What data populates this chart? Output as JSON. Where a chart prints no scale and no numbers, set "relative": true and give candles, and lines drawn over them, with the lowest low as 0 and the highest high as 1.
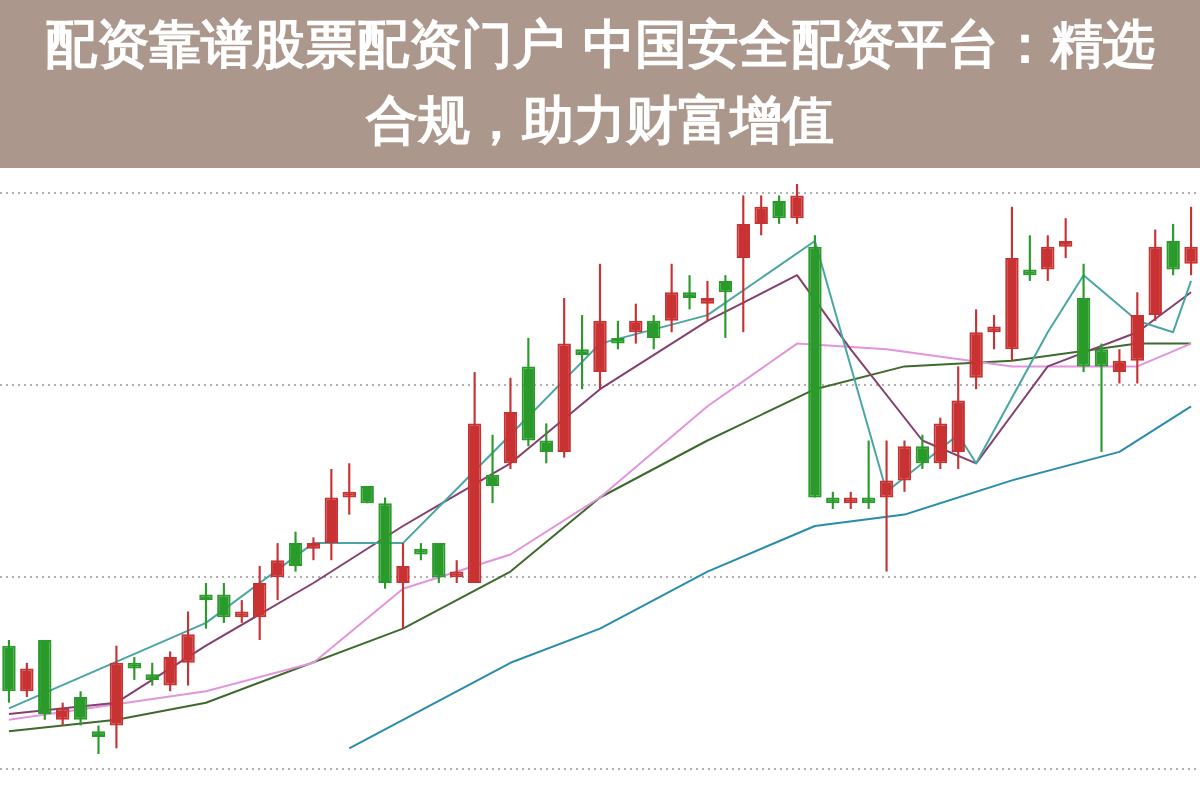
{
  "chart_data": {
    "type": "candlestick",
    "relative": true,
    "title": "配资靠谱股票配资门户 中国安全配资平台：精选合规，助力财富增值",
    "grid": true,
    "legend": false,
    "categories": [
      null,
      null,
      null,
      null,
      null,
      null,
      null,
      null,
      null,
      null,
      null,
      null,
      null,
      null,
      null,
      null,
      null,
      null,
      null,
      null,
      null,
      null,
      null,
      null,
      null,
      null,
      null,
      null,
      null,
      null,
      null,
      null,
      null,
      null,
      null,
      null,
      null,
      null,
      null,
      null,
      null,
      null,
      null,
      null,
      null,
      null,
      null,
      null,
      null,
      null,
      null,
      null,
      null,
      null,
      null,
      null,
      null,
      null,
      null,
      null,
      null,
      null,
      null,
      null,
      null,
      null,
      null
    ],
    "ohlc": [
      [
        0.19,
        0.2,
        0.09,
        0.11
      ],
      [
        0.11,
        0.16,
        0.1,
        0.15
      ],
      [
        0.2,
        0.2,
        0.06,
        0.07
      ],
      [
        0.06,
        0.09,
        0.05,
        0.08
      ],
      [
        0.1,
        0.11,
        0.05,
        0.06
      ],
      [
        0.04,
        0.05,
        0,
        0.03
      ],
      [
        0.05,
        0.19,
        0.01,
        0.16
      ],
      [
        0.16,
        0.17,
        0.13,
        0.15
      ],
      [
        0.14,
        0.16,
        0.12,
        0.13
      ],
      [
        0.12,
        0.18,
        0.11,
        0.17
      ],
      [
        0.16,
        0.25,
        0.12,
        0.21
      ],
      [
        0.28,
        0.3,
        0.22,
        0.27
      ],
      [
        0.28,
        0.3,
        0.23,
        0.24
      ],
      [
        0.24,
        0.27,
        0.23,
        0.25
      ],
      [
        0.24,
        0.33,
        0.2,
        0.3
      ],
      [
        0.31,
        0.37,
        0.27,
        0.34
      ],
      [
        0.37,
        0.39,
        0.32,
        0.33
      ],
      [
        0.36,
        0.38,
        0.34,
        0.37
      ],
      [
        0.37,
        0.5,
        0.34,
        0.45
      ],
      [
        0.45,
        0.51,
        0.42,
        0.46
      ],
      [
        0.47,
        0.47,
        0.44,
        0.44
      ],
      [
        0.44,
        0.45,
        0.29,
        0.3
      ],
      [
        0.3,
        0.37,
        0.22,
        0.33
      ],
      [
        0.36,
        0.37,
        0.34,
        0.35
      ],
      [
        0.37,
        0.37,
        0.3,
        0.31
      ],
      [
        0.31,
        0.34,
        0.3,
        0.32
      ],
      [
        0.3,
        0.67,
        0.3,
        0.58
      ],
      [
        0.49,
        0.56,
        0.44,
        0.47
      ],
      [
        0.51,
        0.66,
        0.5,
        0.6
      ],
      [
        0.68,
        0.73,
        0.54,
        0.55
      ],
      [
        0.55,
        0.58,
        0.51,
        0.53
      ],
      [
        0.53,
        0.8,
        0.52,
        0.72
      ],
      [
        0.71,
        0.77,
        0.64,
        0.7
      ],
      [
        0.67,
        0.86,
        0.64,
        0.76
      ],
      [
        0.73,
        0.76,
        0.71,
        0.72
      ],
      [
        0.74,
        0.79,
        0.72,
        0.76
      ],
      [
        0.76,
        0.77,
        0.71,
        0.73
      ],
      [
        0.76,
        0.86,
        0.74,
        0.81
      ],
      [
        0.81,
        0.84,
        0.78,
        0.8
      ],
      [
        0.79,
        0.83,
        0.76,
        0.8
      ],
      [
        0.83,
        0.84,
        0.73,
        0.81
      ],
      [
        0.87,
        0.98,
        0.74,
        0.93
      ],
      [
        0.93,
        0.98,
        0.91,
        0.96
      ],
      [
        0.97,
        0.98,
        0.93,
        0.94
      ],
      [
        0.94,
        1,
        0.93,
        0.98
      ],
      [
        0.89,
        0.91,
        0.45,
        0.45
      ],
      [
        0.45,
        0.46,
        0.43,
        0.44
      ],
      [
        0.44,
        0.46,
        0.43,
        0.45
      ],
      [
        0.45,
        0.55,
        0.43,
        0.44
      ],
      [
        0.45,
        0.55,
        0.32,
        0.48
      ],
      [
        0.48,
        0.55,
        0.46,
        0.54
      ],
      [
        0.54,
        0.56,
        0.5,
        0.51
      ],
      [
        0.51,
        0.59,
        0.5,
        0.58
      ],
      [
        0.53,
        0.68,
        0.5,
        0.62
      ],
      [
        0.66,
        0.78,
        0.64,
        0.74
      ],
      [
        0.74,
        0.77,
        0.71,
        0.75
      ],
      [
        0.71,
        0.96,
        0.69,
        0.87
      ],
      [
        0.85,
        0.91,
        0.83,
        0.84
      ],
      [
        0.85,
        0.91,
        0.83,
        0.89
      ],
      [
        0.89,
        0.94,
        0.87,
        0.9
      ],
      [
        0.8,
        0.86,
        0.67,
        0.68
      ],
      [
        0.71,
        0.72,
        0.53,
        0.68
      ],
      [
        0.67,
        0.71,
        0.65,
        0.69
      ],
      [
        0.69,
        0.81,
        0.65,
        0.77
      ],
      [
        0.77,
        0.92,
        0.76,
        0.89
      ],
      [
        0.9,
        0.93,
        0.84,
        0.85
      ],
      [
        0.86,
        0.96,
        0.84,
        0.89
      ]
    ],
    "series": [
      {
        "type": "line",
        "color": "#4aa6a6",
        "values": [
          0.08,
          null,
          null,
          null,
          null,
          null,
          null,
          null,
          null,
          null,
          null,
          0.23,
          null,
          null,
          null,
          null,
          null,
          0.37,
          null,
          null,
          null,
          null,
          0.37,
          null,
          null,
          null,
          null,
          null,
          0.56,
          null,
          null,
          null,
          null,
          0.72,
          null,
          null,
          null,
          null,
          null,
          0.77,
          null,
          null,
          null,
          null,
          null,
          0.9,
          null,
          null,
          null,
          0.46,
          null,
          null,
          null,
          0.56,
          0.51,
          null,
          null,
          null,
          0.74,
          null,
          0.84,
          null,
          null,
          0.76,
          null,
          0.74,
          0.83
        ]
      },
      {
        "type": "line",
        "color": "#84406e",
        "values": [
          0.07,
          null,
          null,
          null,
          null,
          null,
          0.09,
          null,
          null,
          null,
          null,
          0.19,
          null,
          null,
          null,
          null,
          null,
          0.3,
          null,
          null,
          null,
          null,
          0.4,
          null,
          null,
          null,
          null,
          null,
          0.51,
          null,
          null,
          null,
          null,
          0.64,
          null,
          null,
          null,
          null,
          null,
          0.76,
          null,
          null,
          null,
          null,
          0.84,
          null,
          null,
          0.71,
          null,
          null,
          null,
          0.55,
          null,
          null,
          0.51,
          null,
          null,
          null,
          0.68,
          null,
          null,
          null,
          null,
          0.74,
          null,
          null,
          0.81
        ]
      },
      {
        "type": "line",
        "color": "#e294dc",
        "values": [
          0.06,
          null,
          null,
          null,
          null,
          null,
          null,
          null,
          null,
          null,
          null,
          0.11,
          null,
          null,
          null,
          null,
          null,
          0.16,
          null,
          null,
          null,
          null,
          0.29,
          null,
          null,
          null,
          null,
          null,
          0.35,
          null,
          null,
          null,
          null,
          0.45,
          null,
          null,
          null,
          null,
          null,
          0.61,
          null,
          null,
          null,
          null,
          0.72,
          null,
          null,
          null,
          null,
          0.71,
          null,
          null,
          null,
          null,
          null,
          null,
          0.68,
          null,
          null,
          null,
          null,
          null,
          null,
          0.68,
          null,
          null,
          0.72
        ]
      },
      {
        "type": "line",
        "color": "#3e6a2e",
        "values": [
          0.04,
          null,
          null,
          null,
          null,
          null,
          0.06,
          null,
          null,
          null,
          null,
          0.09,
          null,
          null,
          null,
          null,
          null,
          null,
          null,
          null,
          null,
          null,
          0.22,
          null,
          null,
          null,
          null,
          null,
          0.32,
          null,
          null,
          null,
          null,
          0.45,
          null,
          null,
          null,
          null,
          null,
          0.55,
          null,
          null,
          null,
          null,
          null,
          0.64,
          null,
          null,
          null,
          null,
          0.68,
          null,
          null,
          null,
          null,
          null,
          0.69,
          null,
          null,
          null,
          null,
          null,
          null,
          0.72,
          null,
          null,
          0.72
        ]
      },
      {
        "type": "line",
        "color": "#2a8cac",
        "values": [
          null,
          null,
          null,
          null,
          null,
          null,
          null,
          null,
          null,
          null,
          null,
          null,
          null,
          null,
          null,
          null,
          null,
          null,
          null,
          0.01,
          null,
          null,
          0.06,
          null,
          null,
          null,
          null,
          null,
          0.16,
          null,
          null,
          null,
          null,
          0.22,
          null,
          null,
          null,
          null,
          null,
          0.32,
          null,
          null,
          null,
          null,
          null,
          0.4,
          null,
          null,
          null,
          null,
          0.42,
          null,
          null,
          null,
          null,
          null,
          0.48,
          null,
          null,
          null,
          null,
          null,
          0.53,
          null,
          null,
          null,
          0.61
        ]
      }
    ]
  }
}
